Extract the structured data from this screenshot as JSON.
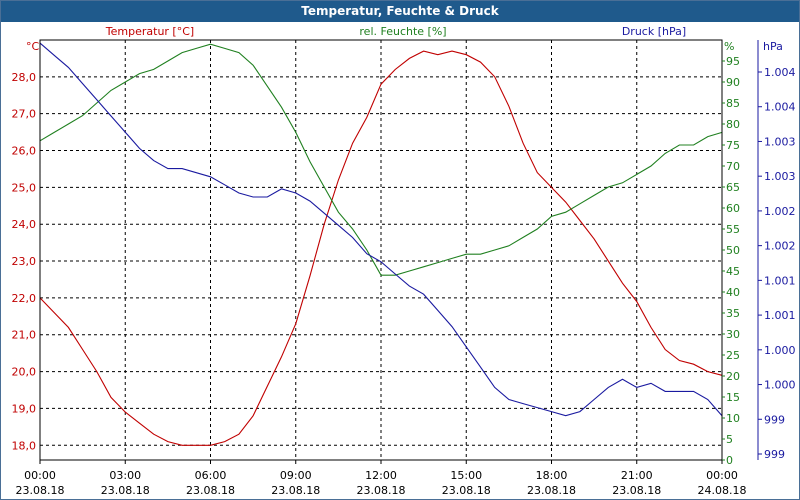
{
  "chart_data": {
    "type": "line",
    "title": "Temperatur, Feuchte & Druck",
    "x_ticks": [
      {
        "time": "00:00",
        "date": "23.08.18"
      },
      {
        "time": "03:00",
        "date": "23.08.18"
      },
      {
        "time": "06:00",
        "date": "23.08.18"
      },
      {
        "time": "09:00",
        "date": "23.08.18"
      },
      {
        "time": "12:00",
        "date": "23.08.18"
      },
      {
        "time": "15:00",
        "date": "23.08.18"
      },
      {
        "time": "18:00",
        "date": "23.08.18"
      },
      {
        "time": "21:00",
        "date": "23.08.18"
      },
      {
        "time": "00:00",
        "date": "24.08.18"
      }
    ],
    "x_range_hours": [
      0,
      24
    ],
    "axes": {
      "temperature": {
        "label": "Temperatur [°C]",
        "unit": "°C",
        "color": "#c00000",
        "ylim": [
          17.6,
          29.0
        ],
        "ticks": [
          "18,0",
          "19,0",
          "20,0",
          "21,0",
          "22,0",
          "23,0",
          "24,0",
          "25,0",
          "26,0",
          "27,0",
          "28,0"
        ]
      },
      "humidity": {
        "label": "rel. Feuchte [%]",
        "unit": "%",
        "color": "#208020",
        "ylim": [
          0,
          100
        ],
        "ticks": [
          "0",
          "5",
          "10",
          "15",
          "20",
          "25",
          "30",
          "35",
          "40",
          "45",
          "50",
          "55",
          "60",
          "65",
          "70",
          "75",
          "80",
          "85",
          "90",
          "95"
        ]
      },
      "pressure": {
        "label": "Druck [hPa]",
        "unit": "hPa",
        "color": "#1a1aa0",
        "tick_labels": [
          "999",
          "999",
          "1.000",
          "1.000",
          "1.001",
          "1.001",
          "1.002",
          "1.002",
          "1.003",
          "1.003",
          "1.004",
          "1.004"
        ]
      }
    },
    "series": [
      {
        "name": "Temperatur",
        "axis": "temperature",
        "color": "#c00000",
        "points": [
          [
            0,
            22.0
          ],
          [
            0.5,
            21.6
          ],
          [
            1,
            21.2
          ],
          [
            1.5,
            20.6
          ],
          [
            2,
            20.0
          ],
          [
            2.5,
            19.3
          ],
          [
            3,
            18.9
          ],
          [
            3.5,
            18.6
          ],
          [
            4,
            18.3
          ],
          [
            4.5,
            18.1
          ],
          [
            5,
            18.0
          ],
          [
            5.5,
            18.0
          ],
          [
            6,
            18.0
          ],
          [
            6.5,
            18.1
          ],
          [
            7,
            18.3
          ],
          [
            7.5,
            18.8
          ],
          [
            8,
            19.6
          ],
          [
            8.5,
            20.4
          ],
          [
            9,
            21.3
          ],
          [
            9.5,
            22.6
          ],
          [
            10,
            24.0
          ],
          [
            10.5,
            25.2
          ],
          [
            11,
            26.2
          ],
          [
            11.5,
            26.9
          ],
          [
            12,
            27.8
          ],
          [
            12.5,
            28.2
          ],
          [
            13,
            28.5
          ],
          [
            13.5,
            28.7
          ],
          [
            14,
            28.6
          ],
          [
            14.5,
            28.7
          ],
          [
            15,
            28.6
          ],
          [
            15.5,
            28.4
          ],
          [
            16,
            28.0
          ],
          [
            16.5,
            27.2
          ],
          [
            17,
            26.2
          ],
          [
            17.5,
            25.4
          ],
          [
            18,
            25.0
          ],
          [
            18.5,
            24.6
          ],
          [
            19,
            24.1
          ],
          [
            19.5,
            23.6
          ],
          [
            20,
            23.0
          ],
          [
            20.5,
            22.4
          ],
          [
            21,
            21.9
          ],
          [
            21.5,
            21.2
          ],
          [
            22,
            20.6
          ],
          [
            22.5,
            20.3
          ],
          [
            23,
            20.2
          ],
          [
            23.5,
            20.0
          ],
          [
            24,
            19.9
          ]
        ]
      },
      {
        "name": "rel. Feuchte",
        "axis": "humidity",
        "color": "#208020",
        "points": [
          [
            0,
            76
          ],
          [
            0.5,
            78
          ],
          [
            1,
            80
          ],
          [
            1.5,
            82
          ],
          [
            2,
            85
          ],
          [
            2.5,
            88
          ],
          [
            3,
            90
          ],
          [
            3.5,
            92
          ],
          [
            4,
            93
          ],
          [
            4.5,
            95
          ],
          [
            5,
            97
          ],
          [
            5.5,
            98
          ],
          [
            6,
            99
          ],
          [
            6.5,
            98
          ],
          [
            7,
            97
          ],
          [
            7.5,
            94
          ],
          [
            8,
            89
          ],
          [
            8.5,
            84
          ],
          [
            9,
            78
          ],
          [
            9.5,
            71
          ],
          [
            10,
            65
          ],
          [
            10.5,
            59
          ],
          [
            11,
            55
          ],
          [
            11.5,
            50
          ],
          [
            12,
            44
          ],
          [
            12.5,
            44
          ],
          [
            13,
            45
          ],
          [
            13.5,
            46
          ],
          [
            14,
            47
          ],
          [
            14.5,
            48
          ],
          [
            15,
            49
          ],
          [
            15.5,
            49
          ],
          [
            16,
            50
          ],
          [
            16.5,
            51
          ],
          [
            17,
            53
          ],
          [
            17.5,
            55
          ],
          [
            18,
            58
          ],
          [
            18.5,
            59
          ],
          [
            19,
            61
          ],
          [
            19.5,
            63
          ],
          [
            20,
            65
          ],
          [
            20.5,
            66
          ],
          [
            21,
            68
          ],
          [
            21.5,
            70
          ],
          [
            22,
            73
          ],
          [
            22.5,
            75
          ],
          [
            23,
            75
          ],
          [
            23.5,
            77
          ],
          [
            24,
            78
          ]
        ]
      },
      {
        "name": "Druck",
        "axis": "pressure",
        "color": "#1a1aa0",
        "note": "values in plot percent (0 = bottom tick 999, 100 = top)",
        "points": [
          [
            0,
            98
          ],
          [
            0.5,
            95
          ],
          [
            1,
            92
          ],
          [
            1.5,
            88
          ],
          [
            2,
            84
          ],
          [
            2.5,
            80
          ],
          [
            3,
            76
          ],
          [
            3.5,
            72
          ],
          [
            4,
            69
          ],
          [
            4.5,
            67
          ],
          [
            5,
            67
          ],
          [
            5.5,
            66
          ],
          [
            6,
            65
          ],
          [
            6.5,
            63
          ],
          [
            7,
            61
          ],
          [
            7.5,
            60
          ],
          [
            8,
            60
          ],
          [
            8.5,
            62
          ],
          [
            9,
            61
          ],
          [
            9.5,
            59
          ],
          [
            10,
            56
          ],
          [
            10.5,
            53
          ],
          [
            11,
            50
          ],
          [
            11.5,
            46
          ],
          [
            12,
            44
          ],
          [
            12.5,
            41
          ],
          [
            13,
            38
          ],
          [
            13.5,
            36
          ],
          [
            14,
            32
          ],
          [
            14.5,
            28
          ],
          [
            15,
            23
          ],
          [
            15.5,
            18
          ],
          [
            16,
            13
          ],
          [
            16.5,
            10
          ],
          [
            17,
            9
          ],
          [
            17.5,
            8
          ],
          [
            18,
            7
          ],
          [
            18.5,
            6
          ],
          [
            19,
            7
          ],
          [
            19.5,
            10
          ],
          [
            20,
            13
          ],
          [
            20.5,
            15
          ],
          [
            21,
            13
          ],
          [
            21.5,
            14
          ],
          [
            22,
            12
          ],
          [
            22.5,
            12
          ],
          [
            23,
            12
          ],
          [
            23.5,
            10
          ],
          [
            24,
            6
          ]
        ]
      }
    ]
  }
}
